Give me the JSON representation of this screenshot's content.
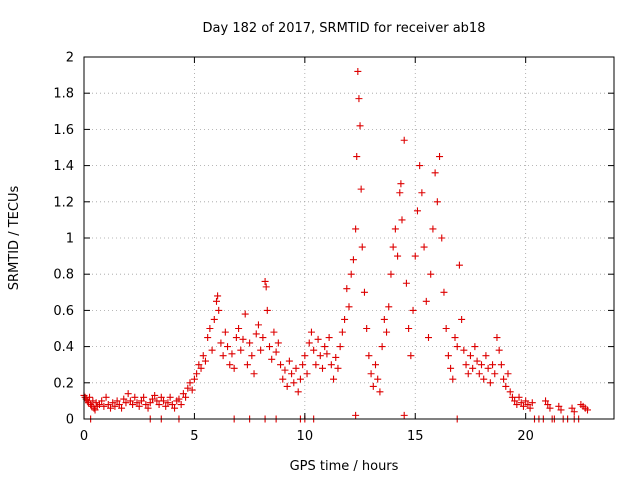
{
  "chart_data": {
    "type": "scatter",
    "title": "Day 182 of 2017, SRMTID for receiver ab18",
    "xlabel": "GPS time / hours",
    "ylabel": "SRMTID / TECUs",
    "xlim": [
      0,
      24
    ],
    "ylim": [
      0,
      2
    ],
    "grid": true,
    "marker": "+",
    "color": "#dd0000",
    "x_ticks": [
      0,
      5,
      10,
      15,
      20
    ],
    "y_ticks": [
      0,
      0.2,
      0.4,
      0.6,
      0.8,
      1,
      1.2,
      1.4,
      1.6,
      1.8,
      2
    ],
    "x_tick_labels": [
      "0",
      "5",
      "10",
      "15",
      "20"
    ],
    "y_tick_labels": [
      "0",
      "0.2",
      "0.4",
      "0.6",
      "0.8",
      "1",
      "1.2",
      "1.4",
      "1.6",
      "1.8",
      "2"
    ],
    "series": [
      {
        "name": "SRMTID",
        "points": [
          [
            0.0,
            0.13
          ],
          [
            0.05,
            0.12
          ],
          [
            0.1,
            0.11
          ],
          [
            0.15,
            0.1
          ],
          [
            0.2,
            0.09
          ],
          [
            0.25,
            0.12
          ],
          [
            0.3,
            0.08
          ],
          [
            0.35,
            0.07
          ],
          [
            0.4,
            0.1
          ],
          [
            0.45,
            0.06
          ],
          [
            0.5,
            0.05
          ],
          [
            0.55,
            0.09
          ],
          [
            0.6,
            0.07
          ],
          [
            0.7,
            0.08
          ],
          [
            0.8,
            0.1
          ],
          [
            0.9,
            0.07
          ],
          [
            1.0,
            0.12
          ],
          [
            1.1,
            0.08
          ],
          [
            1.2,
            0.06
          ],
          [
            1.3,
            0.09
          ],
          [
            1.4,
            0.07
          ],
          [
            1.5,
            0.1
          ],
          [
            1.6,
            0.08
          ],
          [
            1.7,
            0.06
          ],
          [
            1.8,
            0.11
          ],
          [
            1.9,
            0.09
          ],
          [
            2.0,
            0.14
          ],
          [
            2.1,
            0.1
          ],
          [
            2.2,
            0.08
          ],
          [
            2.3,
            0.12
          ],
          [
            2.4,
            0.09
          ],
          [
            2.5,
            0.07
          ],
          [
            2.6,
            0.1
          ],
          [
            2.7,
            0.12
          ],
          [
            2.8,
            0.08
          ],
          [
            2.9,
            0.06
          ],
          [
            3.0,
            0.09
          ],
          [
            3.1,
            0.11
          ],
          [
            3.2,
            0.13
          ],
          [
            3.3,
            0.1
          ],
          [
            3.4,
            0.08
          ],
          [
            3.5,
            0.12
          ],
          [
            3.6,
            0.1
          ],
          [
            3.7,
            0.07
          ],
          [
            3.8,
            0.09
          ],
          [
            3.9,
            0.12
          ],
          [
            4.0,
            0.08
          ],
          [
            4.1,
            0.06
          ],
          [
            4.2,
            0.1
          ],
          [
            4.3,
            0.11
          ],
          [
            4.4,
            0.08
          ],
          [
            4.5,
            0.14
          ],
          [
            4.6,
            0.12
          ],
          [
            4.7,
            0.17
          ],
          [
            4.8,
            0.2
          ],
          [
            4.9,
            0.16
          ],
          [
            5.0,
            0.22
          ],
          [
            5.1,
            0.25
          ],
          [
            5.2,
            0.3
          ],
          [
            5.3,
            0.28
          ],
          [
            5.4,
            0.35
          ],
          [
            5.5,
            0.32
          ],
          [
            5.6,
            0.45
          ],
          [
            5.7,
            0.5
          ],
          [
            5.8,
            0.38
          ],
          [
            5.9,
            0.55
          ],
          [
            6.0,
            0.65
          ],
          [
            6.05,
            0.68
          ],
          [
            6.1,
            0.6
          ],
          [
            6.2,
            0.42
          ],
          [
            6.3,
            0.35
          ],
          [
            6.4,
            0.48
          ],
          [
            6.5,
            0.4
          ],
          [
            6.6,
            0.3
          ],
          [
            6.7,
            0.36
          ],
          [
            6.8,
            0.28
          ],
          [
            6.9,
            0.45
          ],
          [
            7.0,
            0.5
          ],
          [
            7.1,
            0.38
          ],
          [
            7.2,
            0.44
          ],
          [
            7.3,
            0.58
          ],
          [
            7.4,
            0.3
          ],
          [
            7.5,
            0.42
          ],
          [
            7.6,
            0.35
          ],
          [
            7.7,
            0.25
          ],
          [
            7.8,
            0.47
          ],
          [
            7.9,
            0.52
          ],
          [
            8.0,
            0.38
          ],
          [
            8.1,
            0.45
          ],
          [
            8.2,
            0.76
          ],
          [
            8.25,
            0.73
          ],
          [
            8.3,
            0.6
          ],
          [
            8.4,
            0.4
          ],
          [
            8.5,
            0.33
          ],
          [
            8.6,
            0.48
          ],
          [
            8.7,
            0.37
          ],
          [
            8.8,
            0.42
          ],
          [
            8.9,
            0.3
          ],
          [
            9.0,
            0.22
          ],
          [
            9.1,
            0.27
          ],
          [
            9.2,
            0.18
          ],
          [
            9.3,
            0.32
          ],
          [
            9.4,
            0.25
          ],
          [
            9.5,
            0.2
          ],
          [
            9.6,
            0.28
          ],
          [
            9.7,
            0.15
          ],
          [
            9.8,
            0.22
          ],
          [
            9.9,
            0.3
          ],
          [
            10.0,
            0.35
          ],
          [
            10.1,
            0.25
          ],
          [
            10.2,
            0.42
          ],
          [
            10.3,
            0.48
          ],
          [
            10.4,
            0.38
          ],
          [
            10.5,
            0.3
          ],
          [
            10.6,
            0.44
          ],
          [
            10.7,
            0.35
          ],
          [
            10.8,
            0.28
          ],
          [
            10.9,
            0.4
          ],
          [
            11.0,
            0.36
          ],
          [
            11.1,
            0.45
          ],
          [
            11.2,
            0.3
          ],
          [
            11.3,
            0.22
          ],
          [
            11.4,
            0.34
          ],
          [
            11.5,
            0.28
          ],
          [
            11.6,
            0.4
          ],
          [
            11.7,
            0.48
          ],
          [
            11.8,
            0.55
          ],
          [
            11.9,
            0.72
          ],
          [
            12.0,
            0.62
          ],
          [
            12.1,
            0.8
          ],
          [
            12.2,
            0.88
          ],
          [
            12.3,
            1.05
          ],
          [
            12.35,
            1.45
          ],
          [
            12.4,
            1.92
          ],
          [
            12.45,
            1.77
          ],
          [
            12.5,
            1.62
          ],
          [
            12.55,
            1.27
          ],
          [
            12.6,
            0.95
          ],
          [
            12.7,
            0.7
          ],
          [
            12.8,
            0.5
          ],
          [
            12.9,
            0.35
          ],
          [
            13.0,
            0.25
          ],
          [
            13.1,
            0.18
          ],
          [
            13.2,
            0.3
          ],
          [
            13.3,
            0.22
          ],
          [
            13.4,
            0.15
          ],
          [
            13.5,
            0.4
          ],
          [
            13.6,
            0.55
          ],
          [
            13.7,
            0.48
          ],
          [
            13.8,
            0.62
          ],
          [
            13.9,
            0.8
          ],
          [
            14.0,
            0.95
          ],
          [
            14.1,
            1.05
          ],
          [
            14.2,
            0.9
          ],
          [
            14.3,
            1.25
          ],
          [
            14.35,
            1.3
          ],
          [
            14.4,
            1.1
          ],
          [
            14.5,
            1.54
          ],
          [
            14.6,
            0.75
          ],
          [
            14.7,
            0.5
          ],
          [
            14.8,
            0.35
          ],
          [
            14.9,
            0.6
          ],
          [
            15.0,
            0.9
          ],
          [
            15.1,
            1.15
          ],
          [
            15.2,
            1.4
          ],
          [
            15.3,
            1.25
          ],
          [
            15.4,
            0.95
          ],
          [
            15.5,
            0.65
          ],
          [
            15.6,
            0.45
          ],
          [
            15.7,
            0.8
          ],
          [
            15.8,
            1.05
          ],
          [
            15.9,
            1.36
          ],
          [
            16.0,
            1.2
          ],
          [
            16.1,
            1.45
          ],
          [
            16.2,
            1.0
          ],
          [
            16.3,
            0.7
          ],
          [
            16.4,
            0.5
          ],
          [
            16.5,
            0.35
          ],
          [
            16.6,
            0.28
          ],
          [
            16.7,
            0.22
          ],
          [
            16.8,
            0.45
          ],
          [
            16.9,
            0.4
          ],
          [
            17.0,
            0.85
          ],
          [
            17.1,
            0.55
          ],
          [
            17.2,
            0.38
          ],
          [
            17.3,
            0.3
          ],
          [
            17.4,
            0.25
          ],
          [
            17.5,
            0.35
          ],
          [
            17.6,
            0.28
          ],
          [
            17.7,
            0.4
          ],
          [
            17.8,
            0.32
          ],
          [
            17.9,
            0.25
          ],
          [
            18.0,
            0.3
          ],
          [
            18.1,
            0.22
          ],
          [
            18.2,
            0.35
          ],
          [
            18.3,
            0.28
          ],
          [
            18.4,
            0.2
          ],
          [
            18.5,
            0.3
          ],
          [
            18.6,
            0.25
          ],
          [
            18.7,
            0.45
          ],
          [
            18.8,
            0.38
          ],
          [
            18.9,
            0.3
          ],
          [
            19.0,
            0.22
          ],
          [
            19.1,
            0.18
          ],
          [
            19.2,
            0.25
          ],
          [
            19.3,
            0.15
          ],
          [
            19.4,
            0.12
          ],
          [
            19.5,
            0.1
          ],
          [
            19.6,
            0.08
          ],
          [
            19.7,
            0.12
          ],
          [
            19.8,
            0.09
          ],
          [
            19.9,
            0.07
          ],
          [
            20.0,
            0.1
          ],
          [
            20.1,
            0.08
          ],
          [
            20.2,
            0.06
          ],
          [
            20.3,
            0.09
          ],
          [
            20.4,
            0.0
          ],
          [
            20.6,
            0.0
          ],
          [
            20.8,
            0.0
          ],
          [
            20.9,
            0.1
          ],
          [
            21.0,
            0.08
          ],
          [
            21.1,
            0.06
          ],
          [
            21.2,
            0.0
          ],
          [
            21.3,
            0.0
          ],
          [
            21.5,
            0.07
          ],
          [
            21.6,
            0.05
          ],
          [
            21.7,
            0.0
          ],
          [
            21.9,
            0.0
          ],
          [
            22.1,
            0.06
          ],
          [
            22.2,
            0.04
          ],
          [
            22.4,
            0.0
          ],
          [
            22.5,
            0.08
          ],
          [
            22.6,
            0.07
          ],
          [
            22.7,
            0.06
          ],
          [
            22.8,
            0.05
          ],
          [
            0.3,
            0.0
          ],
          [
            3.0,
            0.0
          ],
          [
            3.5,
            0.0
          ],
          [
            4.3,
            0.0
          ],
          [
            6.8,
            0.0
          ],
          [
            7.5,
            0.0
          ],
          [
            8.2,
            0.0
          ],
          [
            8.7,
            0.0
          ],
          [
            9.8,
            0.0
          ],
          [
            10.0,
            0.0
          ],
          [
            10.4,
            0.0
          ],
          [
            12.3,
            0.02
          ],
          [
            14.5,
            0.02
          ],
          [
            16.9,
            0.0
          ],
          [
            22.2,
            0.0
          ]
        ]
      }
    ]
  }
}
